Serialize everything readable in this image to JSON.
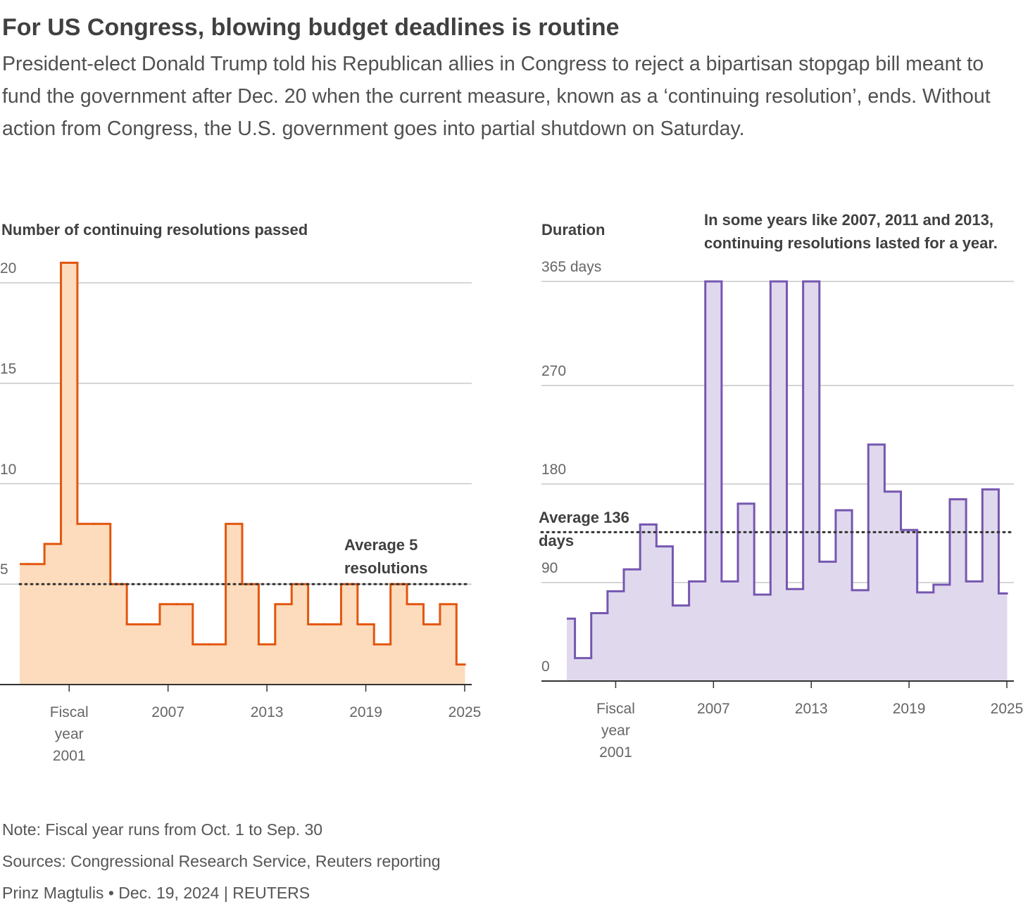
{
  "title": "For US Congress, blowing budget deadlines is routine",
  "subtitle": "President-elect Donald Trump told his Republican allies in Congress to reject a bipartisan stopgap bill meant to fund the government after Dec. 20 when the current measure, known as a ‘continuing resolution’, ends. Without action from Congress, the U.S. government goes into partial shutdown on Saturday.",
  "chart_data": [
    {
      "type": "step",
      "title": "Number of continuing resolutions passed",
      "x": [
        1998,
        1999,
        2000,
        2001,
        2002,
        2003,
        2004,
        2005,
        2006,
        2007,
        2008,
        2009,
        2010,
        2011,
        2012,
        2013,
        2014,
        2015,
        2016,
        2017,
        2018,
        2019,
        2020,
        2021,
        2022,
        2023,
        2024,
        2025
      ],
      "values": [
        6,
        6,
        7,
        21,
        8,
        8,
        5,
        3,
        3,
        4,
        4,
        2,
        2,
        8,
        5,
        2,
        4,
        5,
        3,
        3,
        5,
        3,
        2,
        5,
        4,
        3,
        4,
        1
      ],
      "color": "#e2560f",
      "fill": "#fddcbd",
      "xlim": [
        1998,
        2025
      ],
      "xticks": [
        {
          "value": 2001,
          "label": "Fiscal year 2001"
        },
        2007,
        2013,
        2019,
        2025
      ],
      "ylim": [
        0,
        20
      ],
      "yticks": [
        5,
        10,
        15,
        20
      ],
      "grid": true,
      "average": 5,
      "average_label": "Average 5 resolutions"
    },
    {
      "type": "step",
      "title": "Duration",
      "x": [
        1998,
        1999,
        2000,
        2001,
        2002,
        2003,
        2004,
        2005,
        2006,
        2007,
        2008,
        2009,
        2010,
        2011,
        2012,
        2013,
        2014,
        2015,
        2016,
        2017,
        2018,
        2019,
        2020,
        2021,
        2022,
        2023,
        2024,
        2025
      ],
      "values": [
        57,
        21,
        62,
        82,
        102,
        143,
        123,
        69,
        91,
        365,
        91,
        162,
        79,
        365,
        84,
        365,
        109,
        156,
        83,
        216,
        173,
        138,
        81,
        88,
        166,
        91,
        175,
        80
      ],
      "color": "#7657b0",
      "fill": "#e0d9ee",
      "xlim": [
        1998,
        2025
      ],
      "xticks": [
        {
          "value": 2001,
          "label": "Fiscal year 2001"
        },
        2007,
        2013,
        2019,
        2025
      ],
      "ylim": [
        0,
        365
      ],
      "yticks": [
        0,
        90,
        180,
        270,
        {
          "value": 365,
          "label": "365 days"
        }
      ],
      "grid": true,
      "average": 136,
      "average_label": "Average 136 days",
      "annotation": "In some years like 2007, 2011 and 2013, continuing resolutions lasted for a year."
    }
  ],
  "notes": [
    "Note: Fiscal year runs from Oct. 1 to Sep. 30",
    "Sources: Congressional Research Service, Reuters reporting",
    "Prinz Magtulis • Dec. 19, 2024 | REUTERS"
  ]
}
